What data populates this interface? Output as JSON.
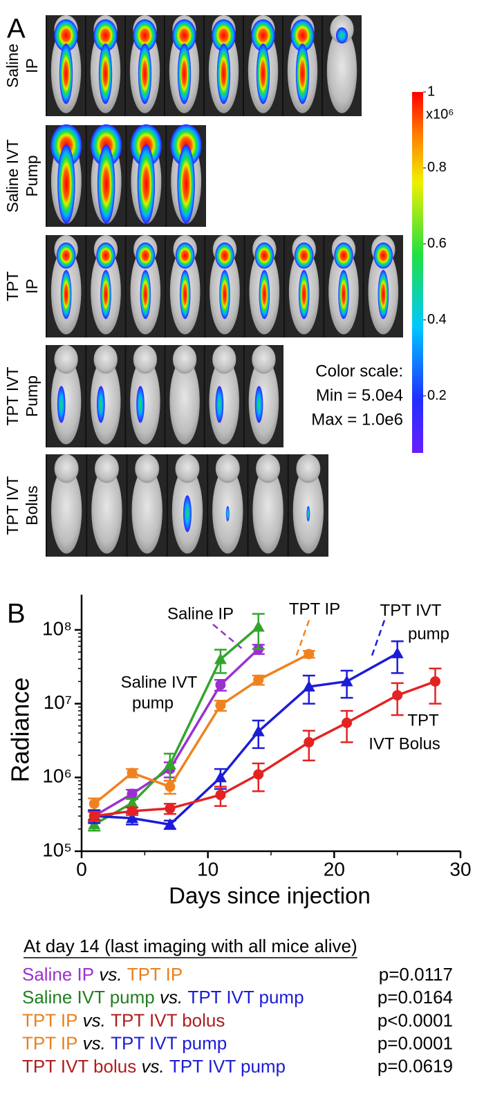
{
  "panel_a": {
    "letter": "A",
    "rows": [
      {
        "lines": [
          "Saline",
          "IP"
        ],
        "color": "#a035d2"
      },
      {
        "lines": [
          "Saline IVT",
          "Pump"
        ],
        "color": "#3fae3a"
      },
      {
        "lines": [
          "TPT",
          "IP"
        ],
        "color": "#f08a2a"
      },
      {
        "lines": [
          "TPT IVT",
          "Pump"
        ],
        "color": "#2222d4"
      },
      {
        "lines": [
          "TPT IVT",
          "Bolus"
        ],
        "color": "#c0201e"
      }
    ],
    "colorbar": {
      "lim": [
        0.05,
        1
      ],
      "ticks": [
        0.2,
        0.4,
        0.6,
        0.8,
        1
      ],
      "unit": "x10⁶"
    },
    "scale_note": [
      "Color scale:",
      "Min = 5.0e4",
      "Max = 1.0e6"
    ]
  },
  "chart_data": {
    "type": "line",
    "letter": "B",
    "ylabel": "Radiance",
    "xlabel": "Days since injection",
    "log_y": true,
    "xlim": [
      0,
      30
    ],
    "xticks": [
      0,
      10,
      20,
      30
    ],
    "ylim": [
      100000,
      300000000
    ],
    "yticks": [
      {
        "value": 100000,
        "label": "10⁵"
      },
      {
        "value": 1000000,
        "label": "10⁶"
      },
      {
        "value": 10000000,
        "label": "10⁷"
      },
      {
        "value": 100000000,
        "label": "10⁸"
      }
    ],
    "series": [
      {
        "label_lines": [
          "Saline IP"
        ],
        "color": "#9b30d0",
        "marker": "circle",
        "x": [
          1,
          4,
          7,
          11,
          14
        ],
        "values": [
          300000,
          600000,
          1300000,
          18000000,
          55000000
        ],
        "errors": [
          50000,
          80000,
          300000,
          3000000,
          8000000
        ]
      },
      {
        "label_lines": [
          "Saline IVT",
          "pump"
        ],
        "color": "#33a52c",
        "marker": "triangle",
        "x": [
          1,
          4,
          7,
          11,
          14
        ],
        "values": [
          230000,
          450000,
          1500000,
          40000000,
          110000000
        ],
        "errors": [
          40000,
          60000,
          600000,
          14000000,
          55000000
        ]
      },
      {
        "label_lines": [
          "TPT IP"
        ],
        "color": "#f0821e",
        "marker": "circle",
        "x": [
          1,
          4,
          7,
          11,
          14,
          18
        ],
        "values": [
          440000,
          1150000,
          750000,
          9500000,
          21000000,
          47000000
        ],
        "errors": [
          80000,
          150000,
          150000,
          1500000,
          3000000,
          5000000
        ]
      },
      {
        "label_lines": [
          "TPT IVT",
          "pump"
        ],
        "color": "#1c1cd8",
        "marker": "triangle",
        "x": [
          1,
          4,
          7,
          11,
          14,
          18,
          21,
          25
        ],
        "values": [
          300000,
          280000,
          230000,
          1000000,
          4200000,
          17000000,
          20000000,
          48000000
        ],
        "errors": [
          60000,
          50000,
          30000,
          300000,
          1700000,
          7000000,
          8000000,
          22000000
        ]
      },
      {
        "label_lines": [
          "TPT",
          "IVT Bolus"
        ],
        "color": "#e42222",
        "text_color": "#c0201e",
        "marker": "circle",
        "x": [
          1,
          4,
          7,
          11,
          14,
          18,
          21,
          25,
          28
        ],
        "values": [
          300000,
          350000,
          380000,
          580000,
          1100000,
          3000000,
          5500000,
          13000000,
          20000000
        ],
        "errors": [
          40000,
          40000,
          60000,
          170000,
          450000,
          1300000,
          2500000,
          6000000,
          10000000
        ]
      }
    ]
  },
  "stats": {
    "heading": "At day 14 (last imaging with all mice alive)",
    "rows": [
      {
        "left": "Saline IP",
        "left_color": "#9b30d0",
        "vs": "vs.",
        "right": "TPT IP",
        "right_color": "#e8801e",
        "p": "p=0.0117"
      },
      {
        "left": "Saline IVT pump",
        "left_color": "#1f7f1f",
        "vs": "vs.",
        "right": "TPT IVT pump",
        "right_color": "#1c1cd8",
        "p": "p=0.0164"
      },
      {
        "left": "TPT IP",
        "left_color": "#e8801e",
        "vs": "vs.",
        "right": "TPT IVT bolus",
        "right_color": "#b01c1c",
        "p": "p<0.0001"
      },
      {
        "left": "TPT IP",
        "left_color": "#e8801e",
        "vs": "vs.",
        "right": "TPT IVT pump",
        "right_color": "#1c1cd8",
        "p": "p=0.0001"
      },
      {
        "left": "TPT IVT bolus",
        "left_color": "#b01c1c",
        "vs": "vs.",
        "right": "TPT IVT pump",
        "right_color": "#1c1cd8",
        "p": "p=0.0619"
      }
    ]
  }
}
